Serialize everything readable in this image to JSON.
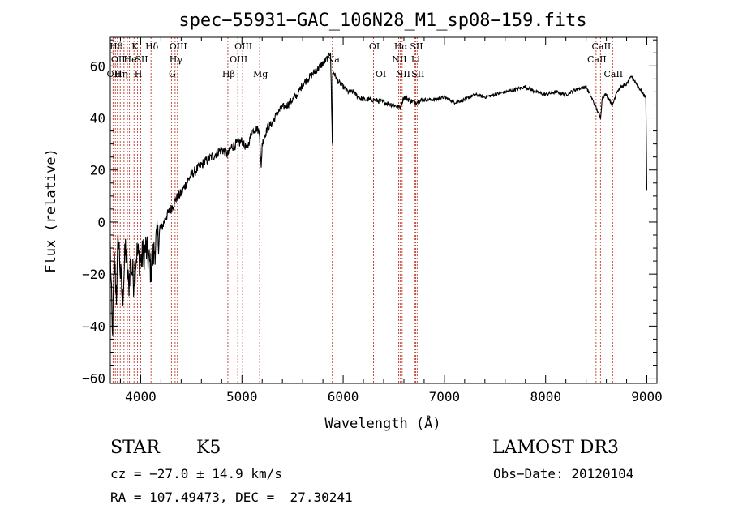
{
  "chart_data": {
    "type": "line",
    "title": "spec−55931−GAC_106N28_M1_sp08−159.fits",
    "xlabel": "Wavelength (Å)",
    "ylabel": "Flux (relative)",
    "xlim": [
      3700,
      9100
    ],
    "ylim": [
      -62,
      71
    ],
    "xticks": [
      4000,
      5000,
      6000,
      7000,
      8000,
      9000
    ],
    "xtick_labels": [
      "4000",
      "5000",
      "6000",
      "7000",
      "8000",
      "9000"
    ],
    "yticks": [
      -60,
      -40,
      -20,
      0,
      20,
      40,
      60
    ],
    "ytick_labels": [
      "−60",
      "−40",
      "−20",
      "0",
      "20",
      "40",
      "60"
    ],
    "series": [
      {
        "name": "spectrum",
        "x": [
          3700,
          3720,
          3740,
          3760,
          3780,
          3800,
          3820,
          3850,
          3880,
          3900,
          3930,
          3960,
          4000,
          4050,
          4100,
          4150,
          4200,
          4250,
          4300,
          4350,
          4400,
          4450,
          4500,
          4600,
          4700,
          4800,
          4861,
          4900,
          4950,
          5000,
          5050,
          5100,
          5150,
          5175,
          5190,
          5200,
          5250,
          5300,
          5350,
          5400,
          5450,
          5500,
          5550,
          5600,
          5650,
          5700,
          5750,
          5800,
          5850,
          5875,
          5893,
          5896,
          5900,
          5950,
          6000,
          6050,
          6100,
          6150,
          6200,
          6300,
          6400,
          6500,
          6563,
          6600,
          6700,
          6800,
          6900,
          7000,
          7100,
          7200,
          7300,
          7400,
          7500,
          7600,
          7700,
          7800,
          7900,
          8000,
          8100,
          8200,
          8300,
          8400,
          8450,
          8498,
          8542,
          8560,
          8600,
          8662,
          8700,
          8750,
          8800,
          8850,
          8900,
          8950,
          8990,
          9000
        ],
        "y": [
          -10,
          -45,
          -15,
          -28,
          -5,
          -20,
          -30,
          -10,
          -25,
          -15,
          -22,
          -12,
          -15,
          -10,
          -18,
          -8,
          -3,
          2,
          5,
          9,
          11,
          15,
          18,
          22,
          25,
          28,
          26,
          29,
          30,
          31,
          28,
          35,
          36,
          34,
          20,
          30,
          36,
          38,
          42,
          44,
          45,
          47,
          49,
          53,
          55,
          57,
          59,
          61,
          63,
          66,
          30,
          55,
          58,
          54,
          52,
          50,
          50,
          48,
          47,
          47,
          46,
          45,
          44,
          48,
          46,
          47,
          47,
          48,
          46,
          47,
          49,
          48,
          49,
          50,
          51,
          52,
          50,
          49,
          50,
          49,
          51,
          52,
          48,
          44,
          40,
          48,
          49,
          45,
          50,
          52,
          53,
          56,
          53,
          50,
          48,
          12
        ]
      }
    ],
    "lines": [
      {
        "wave": 3727,
        "label": "OII",
        "row": 3
      },
      {
        "wave": 3750,
        "label": "Hθ",
        "row": 1
      },
      {
        "wave": 3770,
        "label": "OII",
        "row": 2
      },
      {
        "wave": 3798,
        "label": "Hη",
        "row": 3
      },
      {
        "wave": 3835,
        "label": "",
        "row": 0
      },
      {
        "wave": 3869,
        "label": "",
        "row": 0
      },
      {
        "wave": 3889,
        "label": "He",
        "row": 2
      },
      {
        "wave": 3934,
        "label": "K",
        "row": 1
      },
      {
        "wave": 3969,
        "label": "H",
        "row": 3
      },
      {
        "wave": 4000,
        "label": "SII",
        "row": 2
      },
      {
        "wave": 4102,
        "label": "Hδ",
        "row": 1
      },
      {
        "wave": 4304,
        "label": "G",
        "row": 3
      },
      {
        "wave": 4340,
        "label": "Hγ",
        "row": 2
      },
      {
        "wave": 4363,
        "label": "OIII",
        "row": 1
      },
      {
        "wave": 4861,
        "label": "Hβ",
        "row": 3
      },
      {
        "wave": 4959,
        "label": "OIII",
        "row": 2
      },
      {
        "wave": 5007,
        "label": "OIII",
        "row": 1
      },
      {
        "wave": 5175,
        "label": "Mg",
        "row": 3
      },
      {
        "wave": 5893,
        "label": "Na",
        "row": 2
      },
      {
        "wave": 6300,
        "label": "OI",
        "row": 1
      },
      {
        "wave": 6364,
        "label": "OI",
        "row": 3
      },
      {
        "wave": 6548,
        "label": "NII",
        "row": 2
      },
      {
        "wave": 6563,
        "label": "Hα",
        "row": 1
      },
      {
        "wave": 6583,
        "label": "NII",
        "row": 3
      },
      {
        "wave": 6707,
        "label": "Li",
        "row": 2
      },
      {
        "wave": 6716,
        "label": "SII",
        "row": 1
      },
      {
        "wave": 6731,
        "label": "SII",
        "row": 3
      },
      {
        "wave": 8498,
        "label": "CaII",
        "row": 2
      },
      {
        "wave": 8542,
        "label": "CaII",
        "row": 1
      },
      {
        "wave": 8662,
        "label": "CaII",
        "row": 3
      }
    ]
  },
  "info": {
    "class": "STAR",
    "subclass": "K5",
    "survey": "LAMOST DR3",
    "cz": "cz = −27.0 ± 14.9 km/s",
    "obs_date": "Obs−Date: 20120104",
    "coords": "RA = 107.49473, DEC =  27.30241"
  }
}
